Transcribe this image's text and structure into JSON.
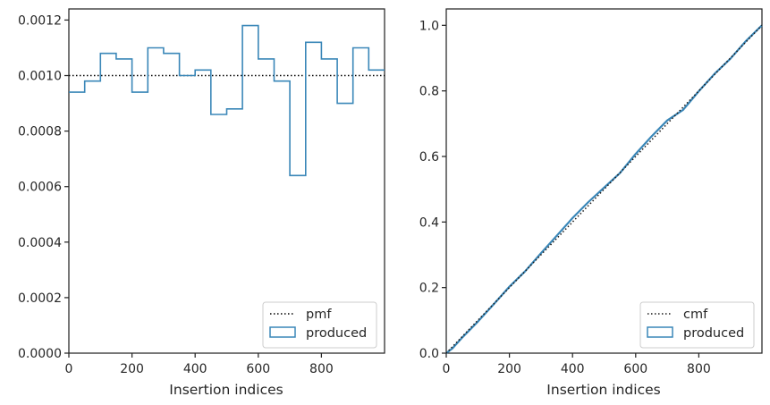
{
  "chart_data": [
    {
      "type": "histogram-step",
      "title": "",
      "xlabel": "Insertion indices",
      "ylabel": "",
      "xlim": [
        0,
        1000
      ],
      "ylim": [
        0,
        0.00124
      ],
      "xticks": [
        0,
        200,
        400,
        600,
        800
      ],
      "yticks": [
        0.0,
        0.0002,
        0.0004,
        0.0006,
        0.0008,
        0.001,
        0.0012
      ],
      "ytick_labels": [
        "0.0000",
        "0.0002",
        "0.0004",
        "0.0006",
        "0.0008",
        "0.0010",
        "0.0012"
      ],
      "bin_edges": [
        0,
        50,
        100,
        150,
        200,
        250,
        300,
        350,
        400,
        450,
        500,
        550,
        600,
        650,
        700,
        750,
        800,
        850,
        900,
        950,
        1000
      ],
      "series": [
        {
          "name": "produced",
          "kind": "step",
          "color": "#3a87b8",
          "values": [
            0.00094,
            0.00098,
            0.00108,
            0.00106,
            0.00094,
            0.0011,
            0.00108,
            0.001,
            0.00102,
            0.00086,
            0.00088,
            0.00118,
            0.00106,
            0.00098,
            0.00064,
            0.00112,
            0.00106,
            0.0009,
            0.0011,
            0.00102
          ]
        },
        {
          "name": "pmf",
          "kind": "hline",
          "color": "#000000",
          "value": 0.001
        }
      ],
      "legend": {
        "position": "lower-right",
        "entries": [
          "pmf",
          "produced"
        ]
      },
      "grid": false
    },
    {
      "type": "cumulative-step",
      "title": "",
      "xlabel": "Insertion indices",
      "ylabel": "",
      "xlim": [
        0,
        1000
      ],
      "ylim": [
        0,
        1.05
      ],
      "xticks": [
        0,
        200,
        400,
        600,
        800
      ],
      "yticks": [
        0.0,
        0.2,
        0.4,
        0.6,
        0.8,
        1.0
      ],
      "ytick_labels": [
        "0.0",
        "0.2",
        "0.4",
        "0.6",
        "0.8",
        "1.0"
      ],
      "series": [
        {
          "name": "cmf",
          "kind": "line",
          "color": "#1a1a1a",
          "x": [
            0,
            1000
          ],
          "y": [
            0,
            1.0
          ]
        },
        {
          "name": "produced",
          "kind": "step",
          "color": "#3a87b8",
          "x": [
            0,
            20,
            50,
            100,
            150,
            200,
            250,
            300,
            350,
            400,
            450,
            500,
            550,
            600,
            650,
            700,
            750,
            800,
            850,
            900,
            950,
            1000
          ],
          "y": [
            0,
            0.015,
            0.047,
            0.096,
            0.149,
            0.203,
            0.25,
            0.305,
            0.358,
            0.412,
            0.461,
            0.505,
            0.549,
            0.608,
            0.661,
            0.71,
            0.742,
            0.799,
            0.852,
            0.898,
            0.953,
            1.0
          ]
        }
      ],
      "legend": {
        "position": "lower-right",
        "entries": [
          "cmf",
          "produced"
        ]
      },
      "grid": false
    }
  ]
}
